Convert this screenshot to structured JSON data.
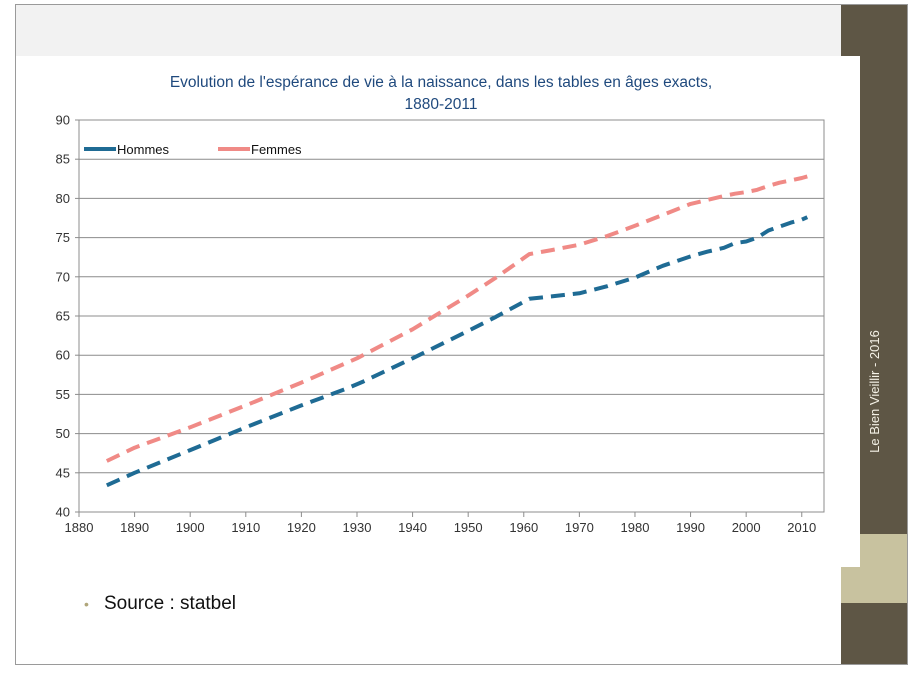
{
  "slide": {
    "side_label": "Le Bien Vieillir - 2016",
    "source_text": "Source : statbel",
    "bullet": "•"
  },
  "colors": {
    "side_panel": "#5e5645",
    "side_accent": "#c8c29f",
    "hommes": "#1f6b94",
    "femmes": "#f08a86",
    "title": "#1f497d"
  },
  "chart_data": {
    "type": "line",
    "title_line1": "Evolution de l'espérance de vie à la naissance, dans les tables en âges exacts,",
    "title_line2": "1880-2011",
    "xlim": [
      1880,
      2014
    ],
    "ylim": [
      40,
      90
    ],
    "x_ticks": [
      1880,
      1890,
      1900,
      1910,
      1920,
      1930,
      1940,
      1950,
      1960,
      1970,
      1980,
      1990,
      2000,
      2010
    ],
    "y_ticks": [
      40,
      45,
      50,
      55,
      60,
      65,
      70,
      75,
      80,
      85,
      90
    ],
    "grid": true,
    "legend_position": "top-left",
    "series": [
      {
        "name": "Hommes",
        "color": "#1f6b94",
        "x": [
          1885,
          1890,
          1900,
          1910,
          1920,
          1928,
          1931,
          1940,
          1950,
          1955,
          1961,
          1965,
          1970,
          1975,
          1980,
          1985,
          1990,
          1993,
          1996,
          1998,
          2000,
          2002,
          2004,
          2006,
          2008,
          2010,
          2011
        ],
        "y": [
          43.4,
          45.0,
          47.9,
          50.8,
          53.6,
          55.7,
          56.6,
          59.6,
          63.1,
          64.9,
          67.2,
          67.5,
          67.9,
          68.8,
          69.9,
          71.4,
          72.6,
          73.2,
          73.7,
          74.3,
          74.5,
          75.0,
          75.9,
          76.4,
          76.9,
          77.3,
          77.6
        ]
      },
      {
        "name": "Femmes",
        "color": "#f08a86",
        "x": [
          1885,
          1890,
          1900,
          1910,
          1920,
          1930,
          1940,
          1950,
          1955,
          1961,
          1965,
          1970,
          1975,
          1980,
          1985,
          1990,
          1993,
          1996,
          1998,
          2000,
          2002,
          2004,
          2006,
          2008,
          2010,
          2011
        ],
        "y": [
          46.5,
          48.2,
          50.8,
          53.6,
          56.5,
          59.6,
          63.3,
          67.6,
          69.9,
          72.9,
          73.4,
          74.1,
          75.2,
          76.5,
          77.9,
          79.3,
          79.8,
          80.3,
          80.6,
          80.8,
          81.1,
          81.6,
          82.0,
          82.3,
          82.6,
          82.8
        ]
      }
    ]
  }
}
